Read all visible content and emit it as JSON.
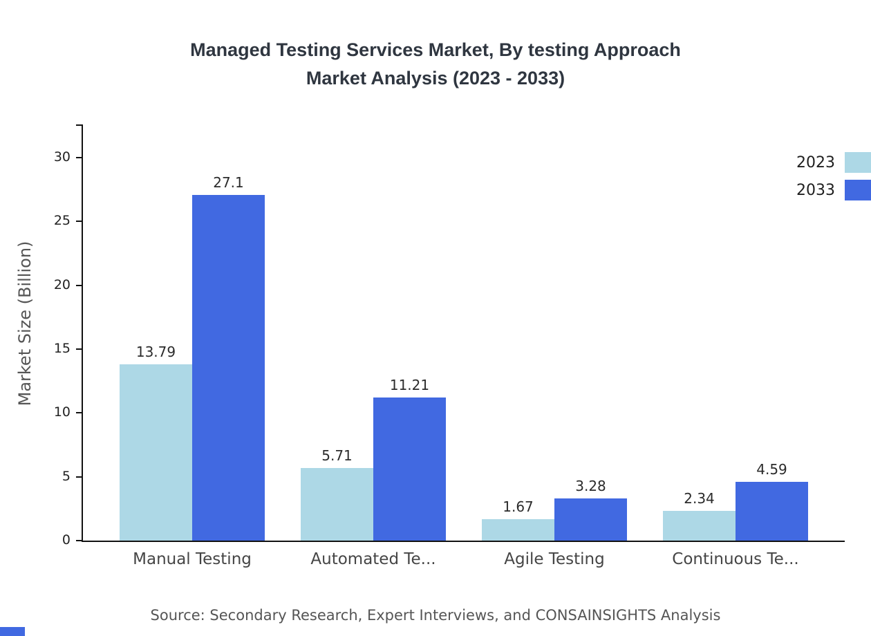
{
  "chart": {
    "title_line1": "Managed Testing Services Market, By testing Approach",
    "title_line2": "Market Analysis (2023 - 2033)",
    "ylabel": "Market Size (Billion)",
    "source": "Source: Secondary Research, Expert Interviews, and CONSAINSIGHTS Analysis"
  },
  "chart_data": {
    "type": "bar",
    "title": "Managed Testing Services Market, By testing Approach Market Analysis (2023 - 2033)",
    "xlabel": "",
    "ylabel": "Market Size (Billion)",
    "categories": [
      "Manual Testing",
      "Automated Te...",
      "Agile Testing",
      "Continuous Te..."
    ],
    "series": [
      {
        "name": "2023",
        "color": "#ADD8E6",
        "values": [
          13.79,
          5.71,
          1.67,
          2.34
        ],
        "labels": [
          "13.79",
          "5.71",
          "1.67",
          "2.34"
        ]
      },
      {
        "name": "2033",
        "color": "#4169E1",
        "values": [
          27.1,
          11.21,
          3.28,
          4.59
        ],
        "labels": [
          "27.1",
          "11.21",
          "3.28",
          "4.59"
        ]
      }
    ],
    "yticks": [
      0,
      5,
      10,
      15,
      20,
      25,
      30
    ],
    "ylim": [
      0,
      32.6
    ],
    "legend_position": "top-right",
    "grid": false,
    "accent_color": "#4169E1"
  }
}
